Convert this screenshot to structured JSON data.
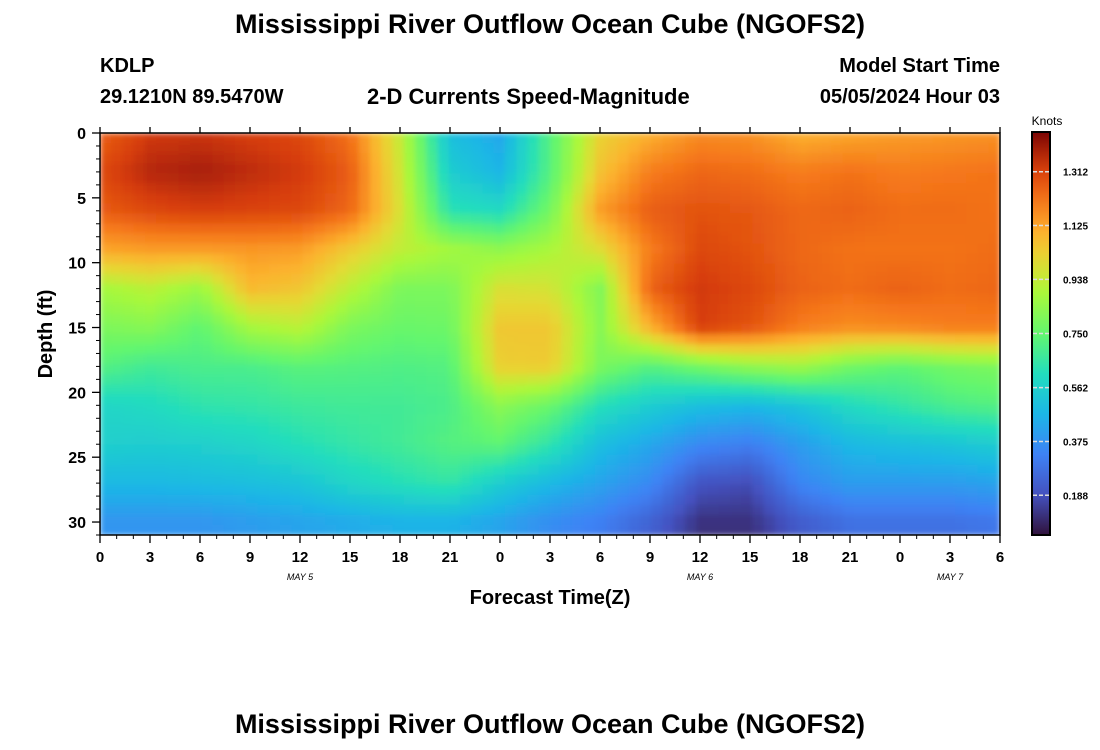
{
  "header": {
    "title": "Mississippi River Outflow Ocean Cube (NGOFS2)",
    "station": "KDLP",
    "coordinates": "29.1210N  89.5470W",
    "subtitle": "2-D Currents Speed-Magnitude",
    "model_start_label": "Model Start Time",
    "model_start_value": "05/05/2024 Hour 03"
  },
  "footer": {
    "title": "Mississippi River Outflow Ocean Cube (NGOFS2)"
  },
  "chart_data": {
    "type": "heatmap",
    "title": "2-D Currents Speed-Magnitude",
    "xlabel": "Forecast Time(Z)",
    "ylabel": "Depth (ft)",
    "x_tick_labels": [
      "0",
      "3",
      "6",
      "9",
      "12",
      "15",
      "18",
      "21",
      "0",
      "3",
      "6",
      "9",
      "12",
      "15",
      "18",
      "21",
      "0",
      "3",
      "6"
    ],
    "x_hours_from_start": [
      0,
      3,
      6,
      9,
      12,
      15,
      18,
      21,
      24,
      27,
      30,
      33,
      36,
      39,
      42,
      45,
      48,
      51,
      54
    ],
    "date_labels": [
      {
        "text": "MAY 5",
        "hour": 12
      },
      {
        "text": "MAY 6",
        "hour": 36
      },
      {
        "text": "MAY 7",
        "hour": 51
      }
    ],
    "xlim_hours": [
      0,
      54
    ],
    "y_tick_labels": [
      "0",
      "5",
      "10",
      "15",
      "20",
      "25",
      "30"
    ],
    "y_ticks": [
      0,
      5,
      10,
      15,
      20,
      25,
      30
    ],
    "ylim_ft": [
      0,
      31
    ],
    "y_inverted": true,
    "colorbar": {
      "unit": "Knots",
      "ticks": [
        "1.312",
        "1.125",
        "0.938",
        "0.750",
        "0.562",
        "0.375",
        "0.188"
      ],
      "tick_values": [
        1.312,
        1.125,
        0.938,
        0.75,
        0.562,
        0.375,
        0.188
      ],
      "range": [
        0.05,
        1.45
      ],
      "colormap": "turbo"
    },
    "grid_hours": [
      0,
      3,
      6,
      9,
      12,
      15,
      18,
      21,
      24,
      27,
      30,
      33,
      36,
      39,
      42,
      45,
      48,
      51,
      54
    ],
    "grid_depths_ft": [
      0,
      3,
      6,
      9,
      12,
      15,
      18,
      21,
      24,
      27,
      30
    ],
    "values_knots": [
      [
        1.25,
        1.33,
        1.34,
        1.32,
        1.3,
        1.22,
        0.94,
        0.5,
        0.43,
        0.72,
        1.02,
        1.1,
        1.17,
        1.16,
        1.1,
        1.12,
        1.14,
        1.15,
        1.16
      ],
      [
        1.3,
        1.37,
        1.39,
        1.36,
        1.33,
        1.26,
        0.96,
        0.55,
        0.47,
        0.72,
        1.06,
        1.2,
        1.24,
        1.23,
        1.2,
        1.22,
        1.2,
        1.21,
        1.22
      ],
      [
        1.26,
        1.3,
        1.32,
        1.31,
        1.3,
        1.24,
        0.98,
        0.63,
        0.6,
        0.78,
        1.14,
        1.26,
        1.28,
        1.27,
        1.24,
        1.25,
        1.23,
        1.23,
        1.22
      ],
      [
        1.12,
        1.14,
        1.14,
        1.15,
        1.14,
        1.04,
        0.93,
        0.88,
        0.84,
        0.89,
        0.99,
        1.2,
        1.3,
        1.28,
        1.24,
        1.22,
        1.22,
        1.22,
        1.23
      ],
      [
        0.88,
        0.92,
        0.86,
        1.08,
        1.05,
        0.92,
        0.8,
        0.8,
        0.98,
        0.97,
        0.81,
        1.25,
        1.33,
        1.3,
        1.25,
        1.23,
        1.25,
        1.23,
        1.24
      ],
      [
        0.8,
        0.82,
        0.74,
        0.88,
        0.92,
        0.8,
        0.76,
        0.77,
        1.05,
        1.05,
        0.82,
        1.1,
        1.32,
        1.28,
        1.2,
        1.17,
        1.18,
        1.2,
        1.2
      ],
      [
        0.72,
        0.68,
        0.7,
        0.7,
        0.73,
        0.72,
        0.71,
        0.72,
        1.03,
        1.04,
        0.8,
        0.72,
        0.78,
        0.84,
        0.87,
        0.78,
        0.74,
        0.78,
        0.8
      ],
      [
        0.58,
        0.6,
        0.64,
        0.65,
        0.67,
        0.68,
        0.68,
        0.7,
        0.83,
        0.76,
        0.62,
        0.55,
        0.5,
        0.48,
        0.52,
        0.6,
        0.65,
        0.7,
        0.72
      ],
      [
        0.56,
        0.55,
        0.56,
        0.58,
        0.62,
        0.65,
        0.68,
        0.72,
        0.74,
        0.64,
        0.5,
        0.43,
        0.35,
        0.32,
        0.4,
        0.48,
        0.5,
        0.52,
        0.55
      ],
      [
        0.48,
        0.48,
        0.49,
        0.5,
        0.52,
        0.58,
        0.62,
        0.65,
        0.55,
        0.48,
        0.42,
        0.35,
        0.2,
        0.18,
        0.34,
        0.4,
        0.4,
        0.4,
        0.42
      ],
      [
        0.38,
        0.38,
        0.38,
        0.4,
        0.42,
        0.44,
        0.46,
        0.46,
        0.42,
        0.36,
        0.32,
        0.24,
        0.12,
        0.12,
        0.22,
        0.28,
        0.28,
        0.28,
        0.3
      ]
    ]
  }
}
